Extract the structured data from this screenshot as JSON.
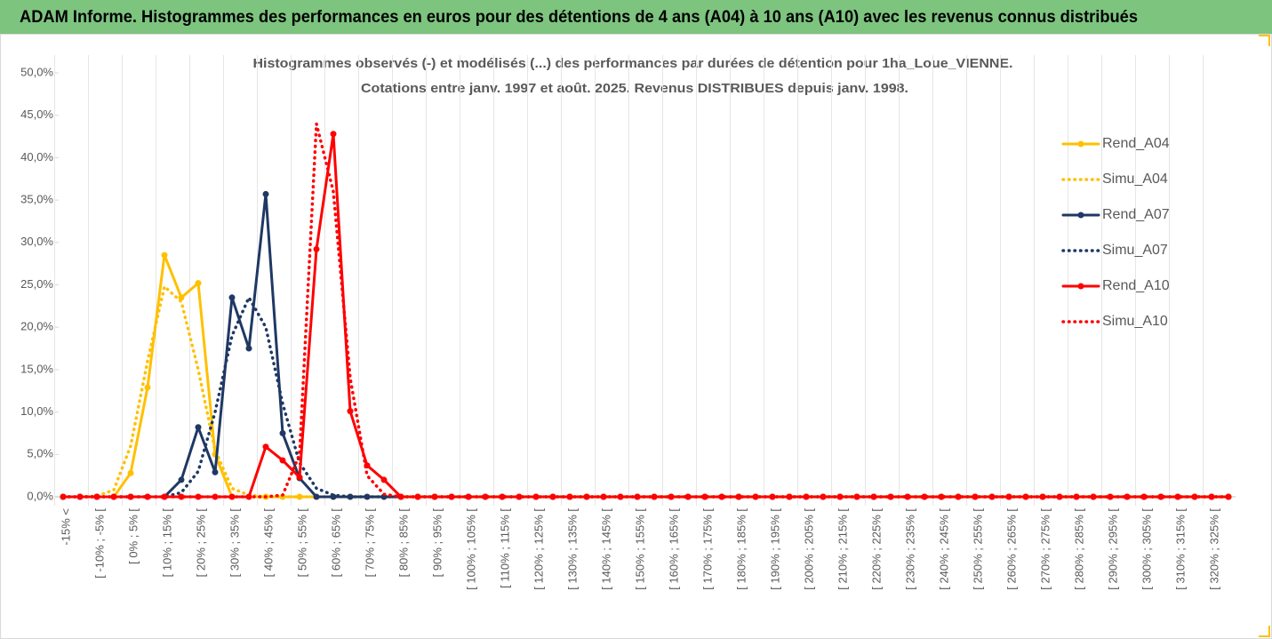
{
  "header": {
    "title": "ADAM Informe. Histogrammes des performances en euros pour des détentions de 4 ans (A04) à 10 ans (A10) avec les revenus connus distribués"
  },
  "chart_data": {
    "type": "line",
    "title": [
      "Histogrammes observés (-) et modélisés (...) des performances par durées de détention pour 1ha_Loue_VIENNE.",
      "Cotations entre janv. 1997 et août. 2025. Revenus DISTRIBUES depuis janv. 1998."
    ],
    "categories": [
      "-15% <",
      null,
      "[ -10% ; -5% [",
      null,
      "[ 0% ; 5% [",
      null,
      "[ 10% ; 15% [",
      null,
      "[ 20% ; 25% [",
      null,
      "[ 30% ; 35% [",
      null,
      "[ 40% ; 45% [",
      null,
      "[ 50% ; 55% [",
      null,
      "[ 60% ; 65% [",
      null,
      "[ 70% ; 75% [",
      null,
      "[ 80% ; 85% [",
      null,
      "[ 90% ; 95% [",
      null,
      "[ 100% ; 105% [",
      null,
      "[ 110% ; 115% [",
      null,
      "[ 120% ; 125% [",
      null,
      "[ 130% ; 135% [",
      null,
      "[ 140% ; 145% [",
      null,
      "[ 150% ; 155% [",
      null,
      "[ 160% ; 165% [",
      null,
      "[ 170% ; 175% [",
      null,
      "[ 180% ; 185% [",
      null,
      "[ 190% ; 195% [",
      null,
      "[ 200% ; 205% [",
      null,
      "[ 210% ; 215% [",
      null,
      "[ 220% ; 225% [",
      null,
      "[ 230% ; 235% [",
      null,
      "[ 240% ; 245% [",
      null,
      "[ 250% ; 255% [",
      null,
      "[ 260% ; 265% [",
      null,
      "[ 270% ; 275% [",
      null,
      "[ 280% ; 285% [",
      null,
      "[ 290% ; 295% [",
      null,
      "[ 300% ; 305% [",
      null,
      "[ 310% ; 315% [",
      null,
      "[ 320% ; 325% [",
      null
    ],
    "series": [
      {
        "name": "Rend_A04",
        "color": "#ffc000",
        "dash": false,
        "markers": true,
        "values": [
          0,
          0,
          0,
          0,
          2.8,
          12.9,
          28.5,
          23.5,
          25.2,
          5.0,
          0,
          0,
          0,
          0,
          0,
          0,
          0,
          0,
          0,
          0,
          0,
          0,
          0,
          0,
          0,
          0,
          0,
          0,
          0,
          0,
          0,
          0,
          0,
          0,
          0,
          0,
          0,
          0,
          0,
          0,
          0,
          0,
          0,
          0,
          0,
          0,
          0,
          0,
          0,
          0,
          0,
          0,
          0,
          0,
          0,
          0,
          0,
          0,
          0,
          0,
          0,
          0,
          0,
          0,
          0,
          0,
          0,
          0,
          0,
          0
        ]
      },
      {
        "name": "Simu_A04",
        "color": "#ffc000",
        "dash": true,
        "markers": false,
        "values": [
          0,
          0,
          0.1,
          0.8,
          6,
          16,
          24.8,
          23,
          15,
          5.5,
          1,
          0.2,
          0,
          0,
          0,
          0,
          0,
          0,
          0,
          0,
          0,
          0,
          0,
          0,
          0,
          0,
          0,
          0,
          0,
          0,
          0,
          0,
          0,
          0,
          0,
          0,
          0,
          0,
          0,
          0,
          0,
          0,
          0,
          0,
          0,
          0,
          0,
          0,
          0,
          0,
          0,
          0,
          0,
          0,
          0,
          0,
          0,
          0,
          0,
          0,
          0,
          0,
          0,
          0,
          0,
          0,
          0,
          0,
          0,
          0
        ]
      },
      {
        "name": "Rend_A07",
        "color": "#1f3864",
        "dash": false,
        "markers": true,
        "values": [
          0,
          0,
          0,
          0,
          0,
          0,
          0,
          2,
          8.2,
          2.9,
          23.5,
          17.5,
          35.7,
          7.5,
          2.2,
          0,
          0,
          0,
          0,
          0,
          0,
          0,
          0,
          0,
          0,
          0,
          0,
          0,
          0,
          0,
          0,
          0,
          0,
          0,
          0,
          0,
          0,
          0,
          0,
          0,
          0,
          0,
          0,
          0,
          0,
          0,
          0,
          0,
          0,
          0,
          0,
          0,
          0,
          0,
          0,
          0,
          0,
          0,
          0,
          0,
          0,
          0,
          0,
          0,
          0,
          0,
          0,
          0,
          0,
          0
        ]
      },
      {
        "name": "Simu_A07",
        "color": "#1f3864",
        "dash": true,
        "markers": false,
        "values": [
          0,
          0,
          0,
          0,
          0,
          0,
          0,
          0.5,
          3,
          10,
          19,
          23.5,
          20,
          11,
          4,
          1,
          0.2,
          0,
          0,
          0,
          0,
          0,
          0,
          0,
          0,
          0,
          0,
          0,
          0,
          0,
          0,
          0,
          0,
          0,
          0,
          0,
          0,
          0,
          0,
          0,
          0,
          0,
          0,
          0,
          0,
          0,
          0,
          0,
          0,
          0,
          0,
          0,
          0,
          0,
          0,
          0,
          0,
          0,
          0,
          0,
          0,
          0,
          0,
          0,
          0,
          0,
          0,
          0,
          0,
          0
        ]
      },
      {
        "name": "Rend_A10",
        "color": "#ff0000",
        "dash": false,
        "markers": true,
        "values": [
          0,
          0,
          0,
          0,
          0,
          0,
          0,
          0,
          0,
          0,
          0,
          0,
          5.9,
          4.3,
          2.3,
          29.2,
          42.8,
          10.1,
          3.7,
          2,
          0,
          0,
          0,
          0,
          0,
          0,
          0,
          0,
          0,
          0,
          0,
          0,
          0,
          0,
          0,
          0,
          0,
          0,
          0,
          0,
          0,
          0,
          0,
          0,
          0,
          0,
          0,
          0,
          0,
          0,
          0,
          0,
          0,
          0,
          0,
          0,
          0,
          0,
          0,
          0,
          0,
          0,
          0,
          0,
          0,
          0,
          0,
          0,
          0,
          0
        ]
      },
      {
        "name": "Simu_A10",
        "color": "#ff0000",
        "dash": true,
        "markers": false,
        "values": [
          0,
          0,
          0,
          0,
          0,
          0,
          0,
          0,
          0,
          0,
          0,
          0,
          0,
          0.2,
          5,
          44,
          36,
          14,
          2.5,
          0.3,
          0,
          0,
          0,
          0,
          0,
          0,
          0,
          0,
          0,
          0,
          0,
          0,
          0,
          0,
          0,
          0,
          0,
          0,
          0,
          0,
          0,
          0,
          0,
          0,
          0,
          0,
          0,
          0,
          0,
          0,
          0,
          0,
          0,
          0,
          0,
          0,
          0,
          0,
          0,
          0,
          0,
          0,
          0,
          0,
          0,
          0,
          0,
          0,
          0,
          0
        ]
      }
    ],
    "ylim": [
      0,
      50
    ],
    "yticks": [
      {
        "value": 0,
        "label": "0,0%"
      },
      {
        "value": 5,
        "label": "5,0%"
      },
      {
        "value": 10,
        "label": "10,0%"
      },
      {
        "value": 15,
        "label": "15,0%"
      },
      {
        "value": 20,
        "label": "20,0%"
      },
      {
        "value": 25,
        "label": "25,0%"
      },
      {
        "value": 30,
        "label": "30,0%"
      },
      {
        "value": 35,
        "label": "35,0%"
      },
      {
        "value": 40,
        "label": "40,0%"
      },
      {
        "value": 45,
        "label": "45,0%"
      },
      {
        "value": 50,
        "label": "50,0%"
      }
    ],
    "xgrid": true,
    "legend": "upper right"
  }
}
